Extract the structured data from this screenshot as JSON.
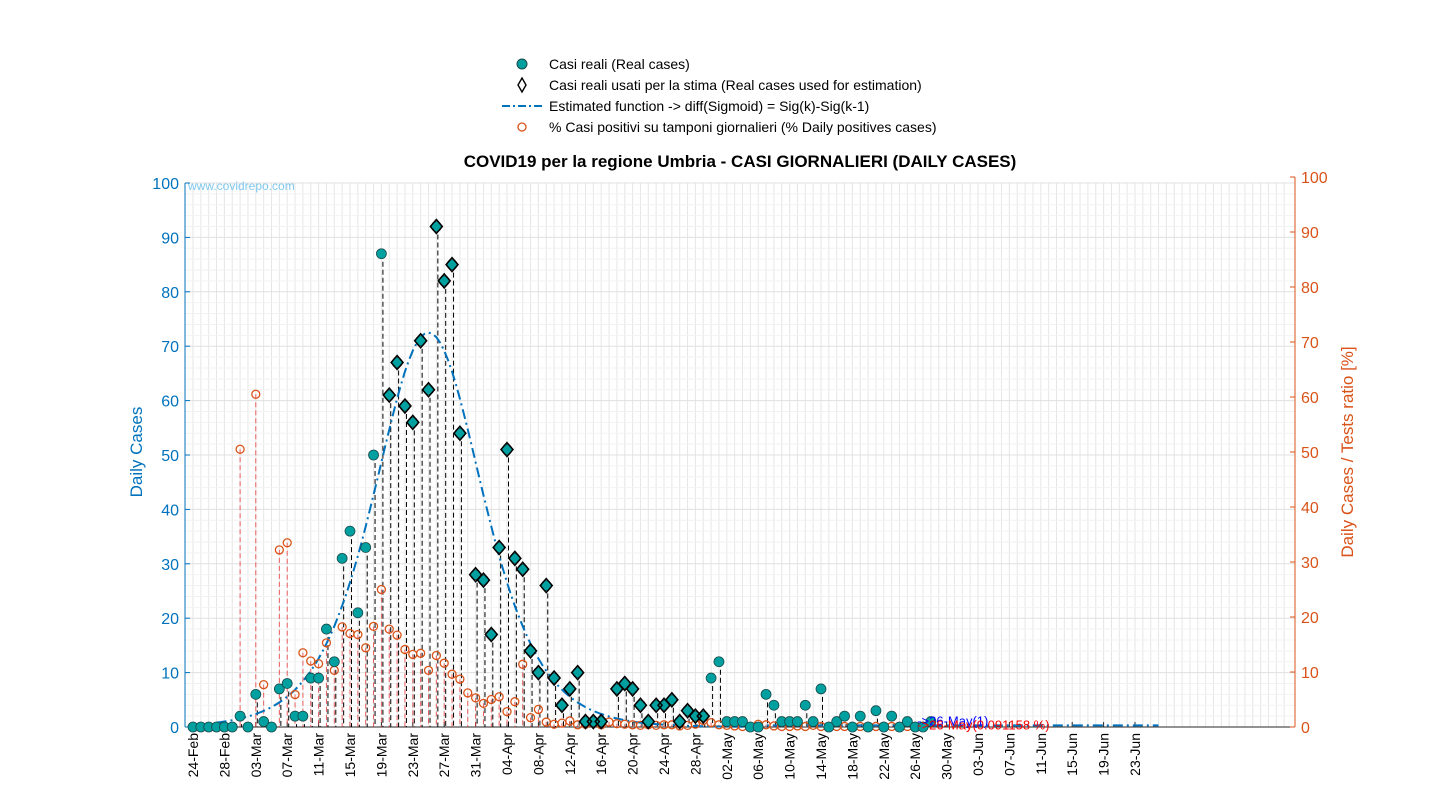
{
  "chart_data": {
    "type": "scatter",
    "title": "COVID19 per la regione Umbria - CASI GIORNALIERI (DAILY CASES)",
    "watermark": "www.covidrepo.com",
    "ylabel_left": "Daily Cases",
    "ylabel_right": "Daily Cases / Tests ratio [%]",
    "ylim_left": [
      0,
      100
    ],
    "ylim_right": [
      0,
      100
    ],
    "yticks_left": [
      "0",
      "10",
      "20",
      "30",
      "40",
      "50",
      "60",
      "70",
      "80",
      "90",
      "100"
    ],
    "yticks_right": [
      "0",
      "10",
      "20",
      "30",
      "40",
      "50",
      "60",
      "70",
      "80",
      "90",
      "100"
    ],
    "x_start_date": "24-Feb",
    "x_ticks": [
      "24-Feb",
      "28-Feb",
      "03-Mar",
      "07-Mar",
      "11-Mar",
      "15-Mar",
      "19-Mar",
      "23-Mar",
      "27-Mar",
      "31-Mar",
      "04-Apr",
      "08-Apr",
      "12-Apr",
      "16-Apr",
      "20-Apr",
      "24-Apr",
      "28-Apr",
      "02-May",
      "06-May",
      "10-May",
      "14-May",
      "18-May",
      "22-May",
      "26-May",
      "30-May",
      "03-Jun",
      "07-Jun",
      "11-Jun",
      "15-Jun",
      "19-Jun",
      "23-Jun"
    ],
    "grid": true,
    "legend_position": "top-center",
    "colors": {
      "real": "#00a0a0",
      "estimated": "#0072bd",
      "positives": "#d95319",
      "left_axis": "#0072bd",
      "right_axis": "#d95319"
    },
    "series": [
      {
        "name": "Casi reali (Real cases)",
        "marker": "filled-circle",
        "values": [
          0,
          0,
          0,
          0,
          0,
          0,
          2,
          0,
          6,
          1,
          0,
          7,
          8,
          2,
          2,
          9,
          9,
          18,
          12,
          31,
          36,
          21,
          33,
          50,
          87,
          61,
          67,
          59,
          56,
          71,
          62,
          92,
          82,
          85,
          54,
          null,
          28,
          27,
          17,
          33,
          51,
          31,
          29,
          14,
          10,
          26,
          9,
          4,
          7,
          10,
          1,
          1,
          1,
          null,
          7,
          8,
          7,
          4,
          1,
          4,
          4,
          5,
          1,
          3,
          2,
          2,
          9,
          12,
          1,
          1,
          1,
          0,
          0,
          6,
          4,
          1,
          1,
          1,
          4,
          1,
          7,
          0,
          1,
          2,
          0,
          2,
          0,
          3,
          0,
          2,
          0,
          1,
          0,
          0,
          1
        ]
      },
      {
        "name": "Casi reali usati per la stima (Real cases used for estimation)",
        "marker": "diamond",
        "values": [
          0,
          0,
          0,
          0,
          0,
          0,
          0,
          0,
          0,
          0,
          0,
          0,
          0,
          0,
          0,
          0,
          0,
          0,
          0,
          0,
          0,
          0,
          0,
          0,
          0,
          61,
          67,
          59,
          56,
          71,
          62,
          92,
          82,
          85,
          54,
          null,
          28,
          27,
          17,
          33,
          51,
          31,
          29,
          14,
          10,
          26,
          9,
          4,
          7,
          10,
          1,
          1,
          1,
          null,
          7,
          8,
          7,
          4,
          1,
          4,
          4,
          5,
          1,
          3,
          2,
          2
        ]
      },
      {
        "name": "Estimated function -> diff(Sigmoid) = Sig(k)-Sig(k-1)",
        "line": "dash-dot",
        "peak_date": "25-Mar",
        "peak_value": 72.5,
        "tail_value": 0.3
      },
      {
        "name": "% Casi positivi su tamponi giornalieri (% Daily positives cases)",
        "marker": "open-circle",
        "axis": "right",
        "values": [
          0,
          0,
          0,
          0,
          0,
          0,
          50.5,
          0,
          60.5,
          7.7,
          0,
          32.2,
          33.5,
          5.9,
          13.5,
          12,
          11.5,
          15.3,
          10.3,
          18.2,
          17,
          16.8,
          14.4,
          18.3,
          25,
          17.8,
          16.7,
          14.1,
          13.2,
          13.4,
          10.3,
          13,
          11.6,
          9.6,
          8.7,
          6.2,
          5.3,
          4.3,
          5,
          5.5,
          2.8,
          4.6,
          11.4,
          1.7,
          3.2,
          0.9,
          0.5,
          0.7,
          1.1,
          0.4,
          0.5,
          0.7,
          0.4,
          0.9,
          0.6,
          0.5,
          0.4,
          0.3,
          0.4,
          0.3,
          0.4,
          0.4,
          0.2,
          0.3,
          0.5,
          1.2,
          0.8,
          0.4,
          0.3,
          0.2,
          0.1,
          0.1,
          0.5,
          0.4,
          0.2,
          0.1,
          0.1,
          0.2,
          0.1,
          0.3,
          0.1,
          0.1,
          0.1,
          0.1,
          0.1,
          0.1,
          0.1,
          0.1,
          0.1,
          0.1,
          0.1,
          0.1,
          0.1,
          0.1
        ]
      }
    ],
    "annotations": [
      {
        "text": "->26-May(1)",
        "color": "#0000ff",
        "date": "26-May",
        "value": 1
      },
      {
        "text": "->26-May(0.091158 %)",
        "color": "#ff0000",
        "date": "26-May",
        "value": 0.091158
      }
    ]
  },
  "legend": {
    "items": [
      "Casi reali (Real cases)",
      "Casi reali usati per la stima (Real cases used for estimation)",
      "Estimated function -> diff(Sigmoid) = Sig(k)-Sig(k-1)",
      "% Casi positivi su tamponi giornalieri (% Daily positives cases)"
    ]
  }
}
